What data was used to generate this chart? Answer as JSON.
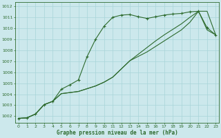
{
  "title": "Graphe pression niveau de la mer (hPa)",
  "background_color": "#cce8ec",
  "grid_color": "#a8d4d8",
  "line_color": "#2d6a2d",
  "line1_y": [
    1001.8,
    1001.85,
    1002.2,
    1003.05,
    1003.35,
    1004.45,
    1004.85,
    1005.3,
    1007.4,
    1009.0,
    1010.2,
    1011.0,
    1011.2,
    1011.25,
    1011.05,
    1010.9,
    1011.05,
    1011.2,
    1011.3,
    1011.35,
    1011.5,
    1011.55,
    1010.05,
    1009.4
  ],
  "line2_y": [
    1001.8,
    1001.85,
    1002.2,
    1003.05,
    1003.35,
    1004.05,
    1004.15,
    1004.25,
    1004.5,
    1004.75,
    1005.1,
    1005.55,
    1006.3,
    1007.05,
    1007.65,
    1008.25,
    1008.85,
    1009.4,
    1009.9,
    1010.4,
    1011.0,
    1011.55,
    1011.55,
    1009.4
  ],
  "line3_y": [
    1001.8,
    1001.85,
    1002.2,
    1003.05,
    1003.35,
    1004.05,
    1004.15,
    1004.25,
    1004.5,
    1004.75,
    1005.1,
    1005.55,
    1006.3,
    1007.05,
    1007.45,
    1007.85,
    1008.35,
    1008.85,
    1009.35,
    1009.85,
    1010.55,
    1011.55,
    1009.85,
    1009.4
  ],
  "yticks": [
    1002,
    1003,
    1004,
    1005,
    1006,
    1007,
    1008,
    1009,
    1010,
    1011,
    1012
  ],
  "xticks": [
    0,
    1,
    2,
    3,
    4,
    5,
    6,
    7,
    8,
    9,
    10,
    11,
    12,
    13,
    14,
    15,
    16,
    17,
    18,
    19,
    20,
    21,
    22,
    23
  ],
  "ylim_min": 1001.4,
  "ylim_max": 1012.4,
  "xlim_min": -0.4,
  "xlim_max": 23.4,
  "tick_fontsize": 4.5,
  "label_fontsize": 5.5
}
